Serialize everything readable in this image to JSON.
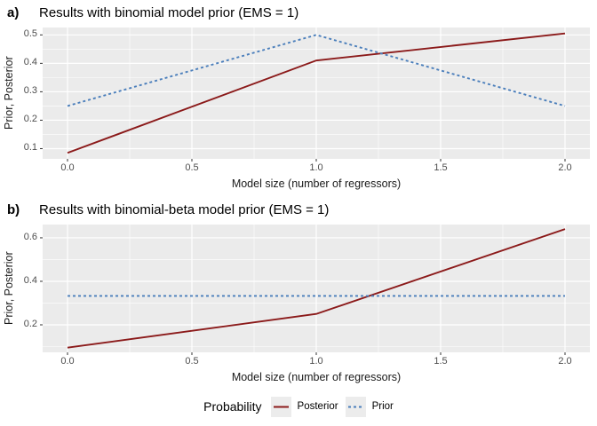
{
  "figure": {
    "bg": "#ffffff",
    "panel_bg": "#ebebeb",
    "grid_color": "#ffffff",
    "tick_color": "#333333",
    "tick_label_color": "#4d4d4d",
    "legend_key_bg": "#ececec"
  },
  "legend": {
    "title": "Probability",
    "items": [
      {
        "label": "Posterior",
        "color": "#8b1a1a",
        "dash": ""
      },
      {
        "label": "Prior",
        "color": "#4a7ebb",
        "dash": "3,3"
      }
    ]
  },
  "chart_data": [
    {
      "type": "line",
      "panel_label": "a)",
      "title": "Results with binomial model prior (EMS = 1)",
      "xlabel": "Model size (number of regressors)",
      "ylabel": "Prior, Posterior",
      "x": [
        0.0,
        1.0,
        2.0
      ],
      "series": [
        {
          "name": "Posterior",
          "values": [
            0.085,
            0.41,
            0.505
          ],
          "color": "#8b1a1a",
          "dash": ""
        },
        {
          "name": "Prior",
          "values": [
            0.25,
            0.5,
            0.25
          ],
          "color": "#4a7ebb",
          "dash": "3,3"
        }
      ],
      "xlim": [
        -0.1,
        2.1
      ],
      "ylim": [
        0.064,
        0.526
      ],
      "x_ticks": [
        0,
        0.5,
        1,
        1.5,
        2
      ],
      "x_tick_labels": [
        "0.0",
        "0.5",
        "1.0",
        "1.5",
        "2.0"
      ],
      "y_ticks": [
        0.1,
        0.2,
        0.3,
        0.4,
        0.5
      ],
      "y_tick_labels": [
        "0.1",
        "0.2",
        "0.3",
        "0.4",
        "0.5"
      ],
      "x_minor": [
        0.25,
        0.75,
        1.25,
        1.75
      ],
      "y_minor": [
        0.15,
        0.25,
        0.35,
        0.45
      ],
      "grid": "on",
      "legend_position": "bottom"
    },
    {
      "type": "line",
      "panel_label": "b)",
      "title": "Results with binomial-beta model prior (EMS = 1)",
      "xlabel": "Model size (number of regressors)",
      "ylabel": "Prior, Posterior",
      "x": [
        0.0,
        1.0,
        2.0
      ],
      "series": [
        {
          "name": "Posterior",
          "values": [
            0.095,
            0.25,
            0.64
          ],
          "color": "#8b1a1a",
          "dash": ""
        },
        {
          "name": "Prior",
          "values": [
            0.333,
            0.333,
            0.333
          ],
          "color": "#4a7ebb",
          "dash": "3,3"
        }
      ],
      "xlim": [
        -0.1,
        2.1
      ],
      "ylim": [
        0.0735,
        0.661
      ],
      "x_ticks": [
        0,
        0.5,
        1,
        1.5,
        2
      ],
      "x_tick_labels": [
        "0.0",
        "0.5",
        "1.0",
        "1.5",
        "2.0"
      ],
      "y_ticks": [
        0.2,
        0.4,
        0.6
      ],
      "y_tick_labels": [
        "0.2",
        "0.4",
        "0.6"
      ],
      "x_minor": [
        0.25,
        0.75,
        1.25,
        1.75
      ],
      "y_minor": [
        0.1,
        0.3,
        0.5
      ],
      "grid": "on",
      "legend_position": "bottom"
    }
  ]
}
